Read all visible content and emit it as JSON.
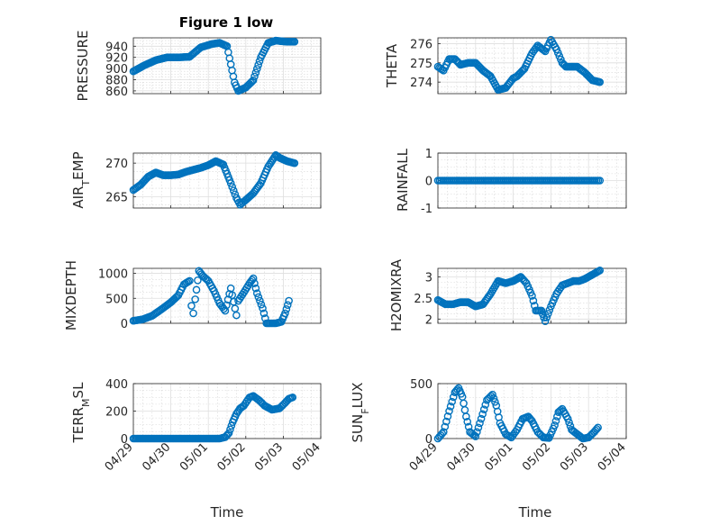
{
  "figure": {
    "title": "Figure 1 low",
    "x_axis_label": "Time",
    "x_ticks": [
      "04/29",
      "04/30",
      "05/01",
      "05/02",
      "05/03",
      "05/04"
    ]
  },
  "colors": {
    "marker": "#0072BD",
    "axis": "#262626",
    "grid": "#d6d6d6"
  },
  "chart_data": [
    {
      "type": "scatter",
      "name": "PRESSURE",
      "ylabel": "PRESSURE",
      "ylim": [
        855,
        955
      ],
      "yticks": [
        "860",
        "880",
        "900",
        "920",
        "940"
      ],
      "ytick_values": [
        860,
        880,
        900,
        920,
        940
      ],
      "x_range": [
        "04/29",
        "05/04"
      ],
      "grid": true,
      "marker": "circle",
      "x": [
        0.0,
        0.3,
        0.6,
        0.9,
        1.2,
        1.5,
        1.8,
        2.1,
        2.3,
        2.5,
        2.7,
        2.8,
        3.0,
        3.2,
        3.4,
        3.6,
        3.8,
        4.1,
        4.3
      ],
      "y": [
        895,
        906,
        915,
        920,
        920,
        921,
        938,
        944,
        946,
        940,
        875,
        860,
        866,
        879,
        920,
        946,
        950,
        948,
        948
      ]
    },
    {
      "type": "scatter",
      "name": "THETA",
      "ylabel": "THETA",
      "ylim": [
        273.4,
        276.3
      ],
      "yticks": [
        "274",
        "275",
        "276"
      ],
      "ytick_values": [
        274,
        275,
        276
      ],
      "x_range": [
        "04/29",
        "05/04"
      ],
      "grid": true,
      "marker": "circle",
      "x": [
        0.0,
        0.15,
        0.3,
        0.45,
        0.6,
        0.8,
        1.0,
        1.2,
        1.4,
        1.6,
        1.8,
        2.0,
        2.1,
        2.3,
        2.5,
        2.65,
        2.85,
        3.0,
        3.15,
        3.3,
        3.4,
        3.5,
        3.7,
        3.9,
        4.1,
        4.3
      ],
      "y": [
        274.8,
        274.6,
        275.2,
        275.2,
        274.9,
        275.0,
        275.0,
        274.6,
        274.3,
        273.6,
        273.7,
        274.2,
        274.3,
        274.7,
        275.5,
        275.9,
        275.6,
        276.2,
        275.7,
        275.0,
        274.8,
        274.8,
        274.8,
        274.5,
        274.1,
        274.0
      ]
    },
    {
      "type": "scatter",
      "name": "AIR_T_EMP",
      "ylabel": "AIR_TEMP",
      "ylim": [
        263.3,
        271.5
      ],
      "yticks": [
        "265",
        "270"
      ],
      "ytick_values": [
        265,
        270
      ],
      "x_range": [
        "04/29",
        "05/04"
      ],
      "grid": true,
      "marker": "circle",
      "x": [
        0.0,
        0.2,
        0.4,
        0.6,
        0.8,
        1.0,
        1.2,
        1.4,
        1.6,
        1.8,
        2.0,
        2.2,
        2.4,
        2.6,
        2.75,
        2.85,
        3.0,
        3.2,
        3.4,
        3.6,
        3.8,
        3.9,
        4.1,
        4.3
      ],
      "y": [
        266.0,
        266.8,
        268.0,
        268.6,
        268.2,
        268.2,
        268.3,
        268.7,
        269.0,
        269.3,
        269.7,
        270.3,
        269.8,
        267.0,
        264.8,
        263.8,
        264.5,
        265.5,
        267.0,
        269.5,
        271.2,
        270.8,
        270.3,
        270.0
      ]
    },
    {
      "type": "scatter",
      "name": "RAINFALL",
      "ylabel": "RAINFALL",
      "ylim": [
        -1,
        1
      ],
      "yticks": [
        "-1",
        "0",
        "1"
      ],
      "ytick_values": [
        -1,
        0,
        1
      ],
      "x_range": [
        "04/29",
        "05/04"
      ],
      "grid": true,
      "marker": "circle",
      "x": [
        0.0,
        4.3
      ],
      "y": [
        0,
        0
      ]
    },
    {
      "type": "scatter",
      "name": "MIXDEPTH",
      "ylabel": "MIXDEPTH",
      "ylim": [
        0,
        1100
      ],
      "yticks": [
        "0",
        "500",
        "1000"
      ],
      "ytick_values": [
        0,
        500,
        1000
      ],
      "x_range": [
        "04/29",
        "05/04"
      ],
      "grid": true,
      "marker": "circle",
      "x": [
        0.0,
        0.25,
        0.5,
        0.75,
        1.0,
        1.2,
        1.35,
        1.5,
        1.55,
        1.6,
        1.65,
        1.75,
        1.85,
        2.0,
        2.15,
        2.3,
        2.45,
        2.6,
        2.75,
        2.8,
        2.95,
        3.1,
        3.2,
        3.3,
        3.45,
        3.55,
        3.65,
        3.8,
        3.95,
        4.05,
        4.15
      ],
      "y": [
        50,
        80,
        150,
        280,
        420,
        560,
        780,
        850,
        350,
        200,
        480,
        1050,
        950,
        850,
        650,
        400,
        250,
        700,
        160,
        450,
        620,
        800,
        900,
        600,
        300,
        0,
        0,
        0,
        30,
        200,
        450
      ]
    },
    {
      "type": "scatter",
      "name": "H2OMIXRA",
      "ylabel": "H2OMIXRA",
      "ylim": [
        1.9,
        3.2
      ],
      "yticks": [
        "2",
        "2.5",
        "3"
      ],
      "ytick_values": [
        2,
        2.5,
        3
      ],
      "x_range": [
        "04/29",
        "05/04"
      ],
      "grid": true,
      "marker": "circle",
      "x": [
        0.0,
        0.2,
        0.4,
        0.6,
        0.8,
        1.0,
        1.2,
        1.4,
        1.6,
        1.8,
        2.0,
        2.2,
        2.35,
        2.5,
        2.6,
        2.75,
        2.85,
        3.0,
        3.15,
        3.3,
        3.45,
        3.6,
        3.75,
        3.9,
        4.1,
        4.3
      ],
      "y": [
        2.45,
        2.35,
        2.35,
        2.4,
        2.4,
        2.3,
        2.35,
        2.6,
        2.9,
        2.85,
        2.9,
        3.0,
        2.85,
        2.55,
        2.2,
        2.2,
        1.95,
        2.3,
        2.6,
        2.8,
        2.85,
        2.9,
        2.9,
        2.95,
        3.05,
        3.15
      ]
    },
    {
      "type": "scatter",
      "name": "TERR_M_SL",
      "ylabel": "TERR_MSL",
      "ylim": [
        0,
        400
      ],
      "yticks": [
        "0",
        "200",
        "400"
      ],
      "ytick_values": [
        0,
        200,
        400
      ],
      "x_range": [
        "04/29",
        "05/04"
      ],
      "grid": true,
      "marker": "circle",
      "x": [
        0.0,
        0.5,
        1.0,
        1.5,
        2.0,
        2.3,
        2.45,
        2.55,
        2.65,
        2.75,
        2.85,
        2.95,
        3.1,
        3.2,
        3.35,
        3.5,
        3.7,
        3.9,
        4.05,
        4.15,
        4.25
      ],
      "y": [
        0,
        0,
        0,
        0,
        0,
        0,
        10,
        40,
        120,
        180,
        220,
        240,
        300,
        310,
        280,
        240,
        210,
        220,
        260,
        290,
        300
      ]
    },
    {
      "type": "scatter",
      "name": "SUN_F_LUX",
      "ylabel": "SUN_FLUX",
      "ylim": [
        0,
        500
      ],
      "yticks": [
        "0",
        "500"
      ],
      "ytick_values": [
        0,
        500
      ],
      "x_range": [
        "04/29",
        "05/04"
      ],
      "grid": true,
      "marker": "circle",
      "x": [
        0.0,
        0.15,
        0.3,
        0.45,
        0.55,
        0.65,
        0.75,
        0.85,
        1.0,
        1.15,
        1.3,
        1.45,
        1.55,
        1.65,
        1.8,
        1.95,
        2.1,
        2.25,
        2.4,
        2.5,
        2.65,
        2.8,
        2.95,
        3.1,
        3.2,
        3.3,
        3.45,
        3.55,
        3.7,
        3.85,
        4.0,
        4.15,
        4.25
      ],
      "y": [
        0,
        60,
        250,
        420,
        460,
        380,
        200,
        60,
        20,
        180,
        350,
        400,
        300,
        140,
        40,
        10,
        80,
        180,
        200,
        160,
        60,
        10,
        5,
        120,
        240,
        270,
        180,
        80,
        40,
        0,
        10,
        60,
        100
      ]
    }
  ]
}
